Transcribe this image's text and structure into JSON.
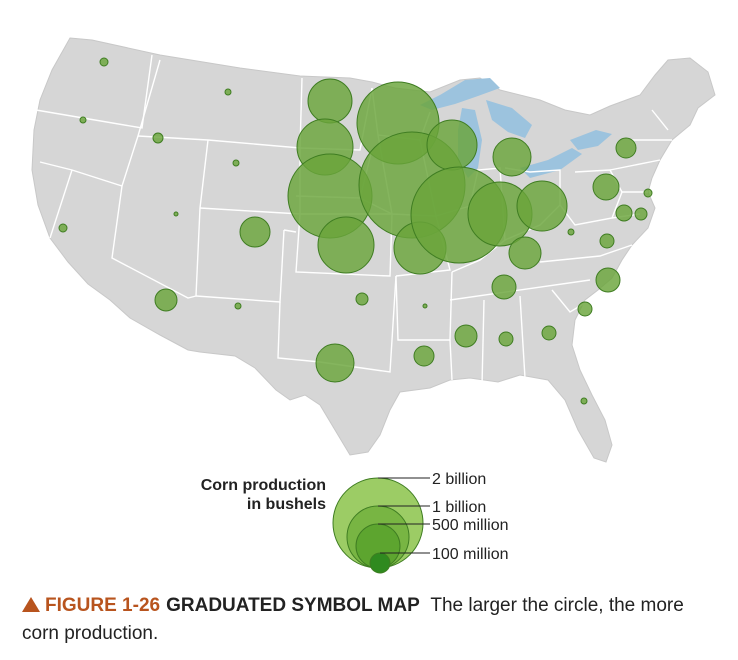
{
  "map": {
    "region": "Contiguous United States",
    "land_color": "#d6d6d6",
    "border_color": "#ffffff",
    "water_color": "#9cc3de",
    "symbol_color": "#6aa53a",
    "symbol_stroke": "#3f7d22"
  },
  "legend": {
    "title_line1": "Corn production",
    "title_line2": "in bushels",
    "levels": [
      {
        "label": "2 billion",
        "value": 2000000000
      },
      {
        "label": "1 billion",
        "value": 1000000000
      },
      {
        "label": "500 million",
        "value": 500000000
      },
      {
        "label": "100 million",
        "value": 100000000
      }
    ]
  },
  "caption": {
    "figure": "FIGURE 1-26",
    "heading": "GRADUATED SYMBOL MAP",
    "text": "The larger the circle, the more corn production."
  }
}
